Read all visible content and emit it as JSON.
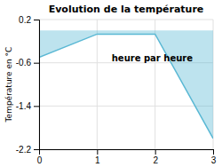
{
  "chart_data": {
    "type": "area",
    "title": "Evolution de la température",
    "ylabel": "Température en °C",
    "annotation": "heure par heure",
    "x": [
      0,
      1,
      2,
      3
    ],
    "values": [
      -0.5,
      -0.07,
      -0.07,
      -2.0
    ],
    "color": "#5ab8d4",
    "xlim": [
      0,
      3
    ],
    "ylim": [
      -2.2,
      0.2
    ],
    "xticks": [
      0,
      1,
      2,
      3
    ],
    "yticks": [
      0.2,
      -0.6,
      -1.4,
      -2.2
    ],
    "grid": true
  }
}
